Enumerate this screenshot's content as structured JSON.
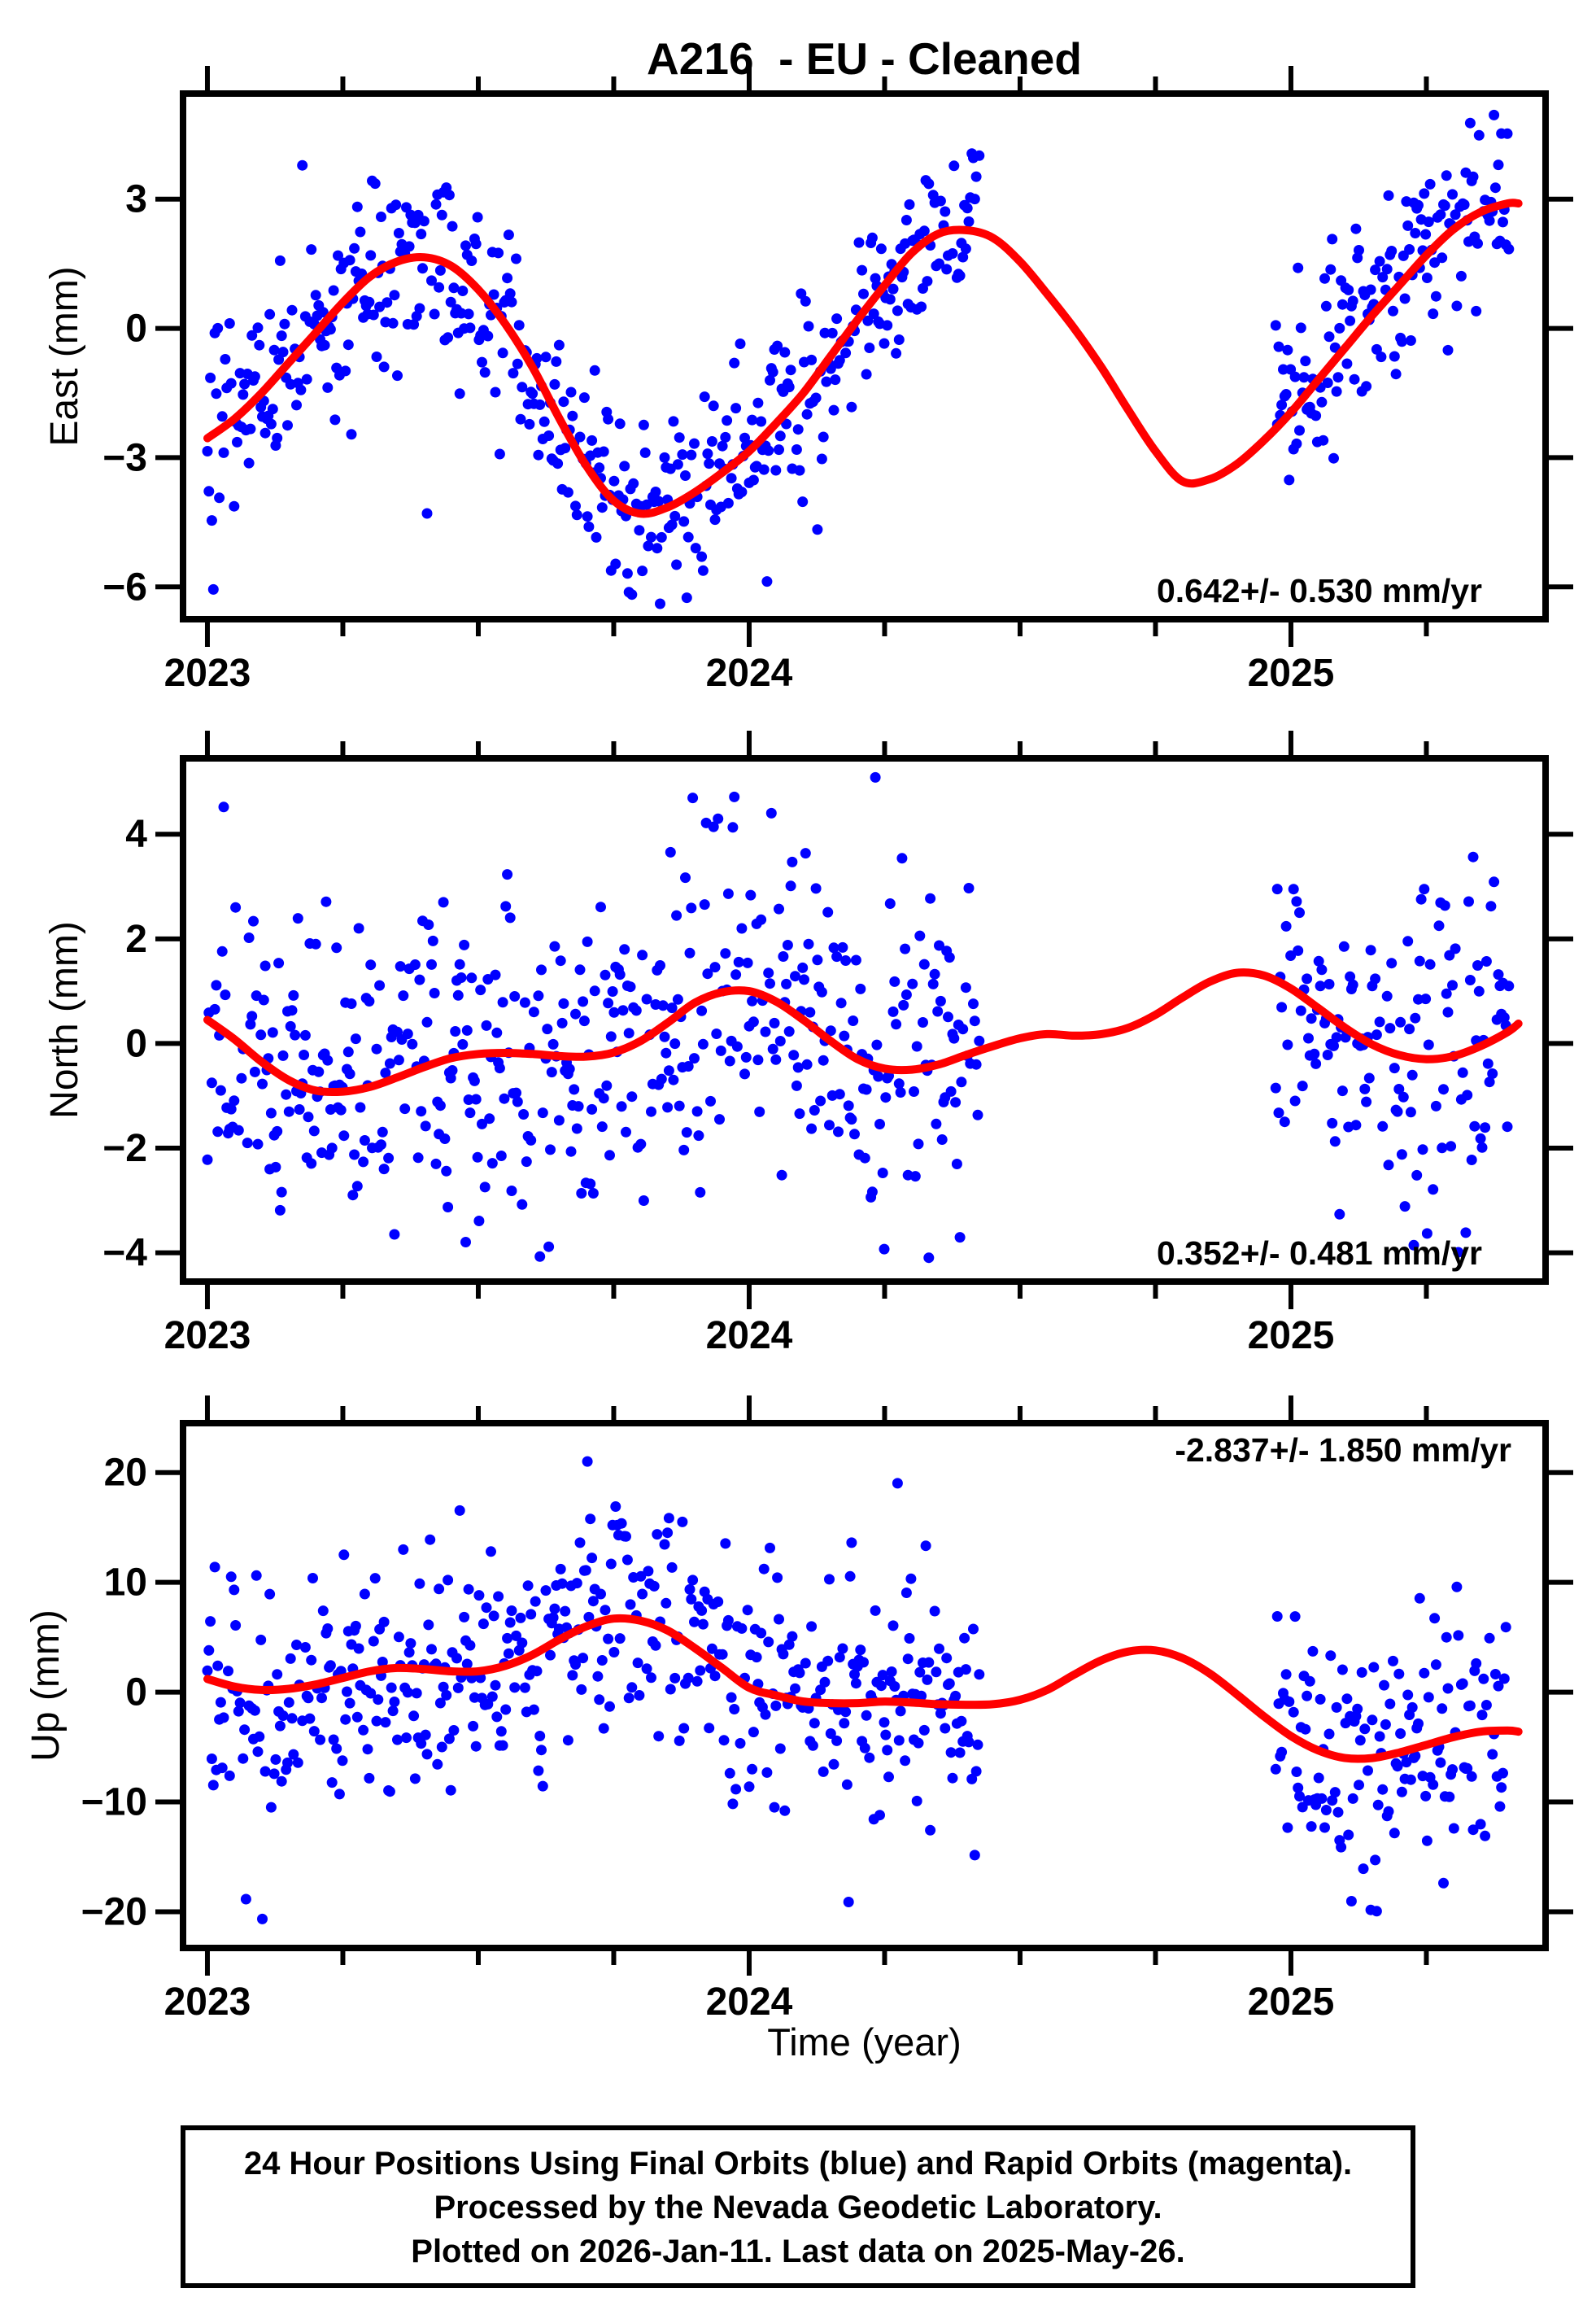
{
  "footer": {
    "lines": [
      "24 Hour Positions Using Final Orbits (blue) and Rapid Orbits (magenta).",
      "Processed by the Nevada Geodetic Laboratory.",
      "Plotted on 2026-Jan-11. Last data on 2025-May-26."
    ]
  },
  "chart_data": {
    "type": "scatter",
    "title": "A216  - EU - Cleaned",
    "xlabel": "Time (year)",
    "station": "A216",
    "reference_frame": "EU",
    "solution": "Cleaned",
    "scatter_series_name": "daily 24-hour positions (final orbits)",
    "scatter_series_color": "#0000ff",
    "model_curve_name": "fitted model curve",
    "model_curve_color": "#ff0000",
    "frame_color": "#000000",
    "x_range": [
      2022.955,
      2025.47
    ],
    "x_major_ticks": [
      2023,
      2024,
      2025
    ],
    "x_major_tick_labels": [
      "2023",
      "2024",
      "2025"
    ],
    "x_minor_tick_step": 0.25,
    "grid": "off",
    "curve_x": [
      2023.0,
      2023.05,
      2023.1,
      2023.15,
      2023.2,
      2023.25,
      2023.3,
      2023.35,
      2023.4,
      2023.45,
      2023.5,
      2023.55,
      2023.6,
      2023.65,
      2023.7,
      2023.75,
      2023.8,
      2023.85,
      2023.9,
      2023.95,
      2024.0,
      2024.05,
      2024.1,
      2024.15,
      2024.2,
      2024.25,
      2024.3,
      2024.35,
      2024.4,
      2024.45,
      2024.5,
      2024.55,
      2024.6,
      2024.65,
      2024.7,
      2024.75,
      2024.8,
      2024.85,
      2024.9,
      2024.95,
      2025.0,
      2025.05,
      2025.1,
      2025.15,
      2025.2,
      2025.25,
      2025.3,
      2025.35,
      2025.4,
      2025.42
    ],
    "panels": [
      {
        "name": "east",
        "ylabel": "East (mm)",
        "rate_label": "0.642+/- 0.530 mm/yr",
        "rate_label_corner": "bottom-right",
        "y_range": [
          -6.75,
          5.45
        ],
        "y_ticks": [
          3,
          0,
          -3,
          -6
        ],
        "curve_y": [
          -2.55,
          -2.1,
          -1.5,
          -0.8,
          -0.1,
          0.6,
          1.2,
          1.55,
          1.65,
          1.45,
          0.9,
          0.1,
          -0.9,
          -2.1,
          -3.2,
          -4.0,
          -4.3,
          -4.15,
          -3.8,
          -3.35,
          -2.85,
          -2.2,
          -1.5,
          -0.65,
          0.2,
          1.0,
          1.75,
          2.2,
          2.28,
          2.1,
          1.55,
          0.8,
          0.0,
          -0.9,
          -1.9,
          -2.85,
          -3.55,
          -3.5,
          -3.15,
          -2.6,
          -1.95,
          -1.2,
          -0.45,
          0.3,
          1.0,
          1.7,
          2.3,
          2.7,
          2.9,
          2.9
        ],
        "scatter": {
          "segments": [
            [
              2023.0,
              2024.425
            ],
            [
              2024.972,
              2025.403
            ]
          ],
          "cadence_per_year": 365,
          "sigma": 1.1,
          "tail_fraction": 0.07,
          "tail_multiplier": 2.1,
          "missing_day_fraction": 0.1,
          "seed": 42
        }
      },
      {
        "name": "north",
        "ylabel": "North (mm)",
        "rate_label": "0.352+/- 0.481 mm/yr",
        "rate_label_corner": "bottom-right",
        "y_range": [
          -4.55,
          5.45
        ],
        "y_ticks": [
          4,
          2,
          0,
          -2,
          -4
        ],
        "curve_y": [
          0.45,
          0.08,
          -0.35,
          -0.7,
          -0.9,
          -0.92,
          -0.83,
          -0.65,
          -0.45,
          -0.28,
          -0.2,
          -0.18,
          -0.2,
          -0.24,
          -0.25,
          -0.17,
          0.05,
          0.4,
          0.78,
          0.98,
          1.0,
          0.8,
          0.45,
          0.05,
          -0.3,
          -0.48,
          -0.5,
          -0.4,
          -0.22,
          -0.05,
          0.1,
          0.18,
          0.15,
          0.18,
          0.3,
          0.55,
          0.88,
          1.18,
          1.35,
          1.3,
          1.05,
          0.68,
          0.3,
          -0.02,
          -0.22,
          -0.3,
          -0.24,
          -0.05,
          0.22,
          0.38
        ],
        "scatter": {
          "segments": [
            [
              2023.0,
              2024.425
            ],
            [
              2024.972,
              2025.403
            ]
          ],
          "cadence_per_year": 365,
          "sigma": 1.5,
          "tail_fraction": 0.07,
          "tail_multiplier": 2.1,
          "missing_day_fraction": 0.1,
          "seed": 77
        }
      },
      {
        "name": "up",
        "ylabel": "Up (mm)",
        "rate_label": "-2.837+/- 1.850 mm/yr",
        "rate_label_corner": "top-right",
        "y_range": [
          -23.3,
          24.5
        ],
        "y_ticks": [
          20,
          10,
          0,
          -10,
          -20
        ],
        "curve_y": [
          1.2,
          0.5,
          0.2,
          0.3,
          0.7,
          1.3,
          1.9,
          2.2,
          2.1,
          1.9,
          1.9,
          2.4,
          3.4,
          4.8,
          6.0,
          6.7,
          6.5,
          5.6,
          4.0,
          2.2,
          0.4,
          -0.3,
          -0.85,
          -1.0,
          -1.0,
          -0.85,
          -0.95,
          -1.1,
          -1.15,
          -1.1,
          -0.7,
          0.2,
          1.6,
          2.9,
          3.7,
          3.8,
          3.1,
          1.7,
          -0.2,
          -2.2,
          -4.0,
          -5.3,
          -6.0,
          -6.0,
          -5.5,
          -4.8,
          -4.1,
          -3.6,
          -3.5,
          -3.6
        ],
        "scatter": {
          "segments": [
            [
              2023.0,
              2024.425
            ],
            [
              2024.972,
              2025.403
            ]
          ],
          "cadence_per_year": 365,
          "sigma": 5.4,
          "tail_fraction": 0.07,
          "tail_multiplier": 2.1,
          "missing_day_fraction": 0.1,
          "seed": 123
        }
      }
    ]
  }
}
